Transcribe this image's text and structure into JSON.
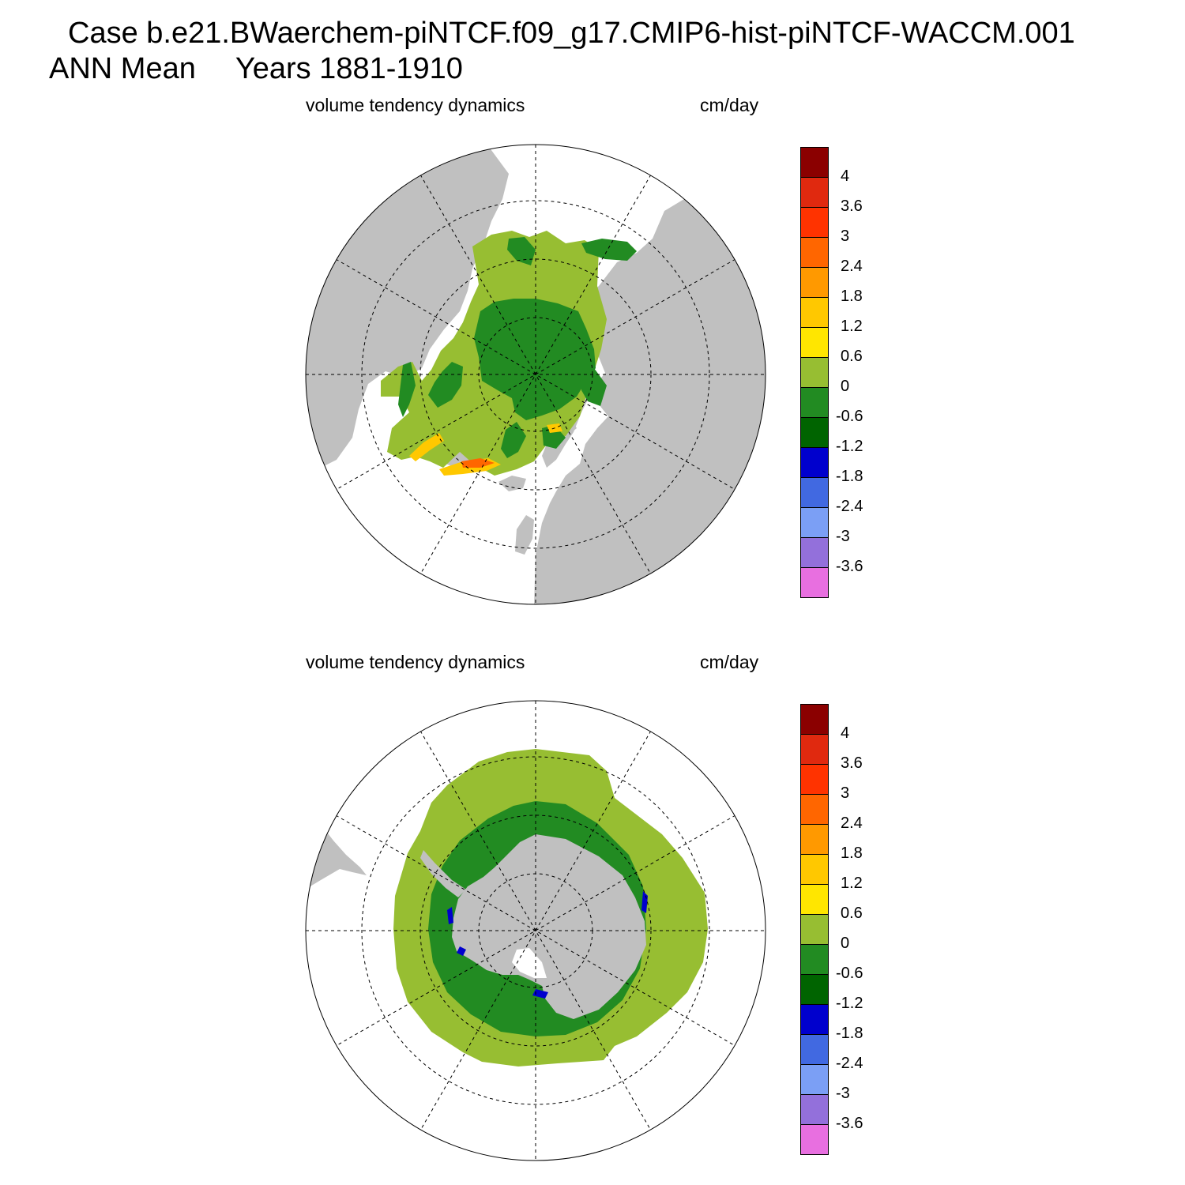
{
  "header": {
    "case_line": "Case b.e21.BWaerchem-piNTCF.f09_g17.CMIP6-hist-piNTCF-WACCM.001",
    "season": "ANN Mean",
    "years": "Years 1881-1910"
  },
  "colors": {
    "land": "#c0c0c0",
    "no_ice": "#ffffff",
    "grid": "#000000"
  },
  "chart_data": [
    {
      "type": "heatmap",
      "projection": "polar-stereographic",
      "hemisphere": "north",
      "title": "volume tendency dynamics",
      "units": "cm/day",
      "grid": true,
      "legend": "right",
      "colorbar": {
        "levels": [
          "4",
          "3.6",
          "3",
          "2.4",
          "1.8",
          "1.2",
          "0.6",
          "0",
          "-0.6",
          "-1.2",
          "-1.8",
          "-2.4",
          "-3",
          "-3.6"
        ],
        "colors": [
          "#8b0000",
          "#e0290f",
          "#ff3300",
          "#ff6600",
          "#ff9900",
          "#ffc800",
          "#ffe600",
          "#97be32",
          "#228b22",
          "#006400",
          "#0000cd",
          "#4169e1",
          "#7b9ff5",
          "#9370db",
          "#e86fe0"
        ]
      }
    },
    {
      "type": "heatmap",
      "projection": "polar-stereographic",
      "hemisphere": "south",
      "title": "volume tendency dynamics",
      "units": "cm/day",
      "grid": true,
      "legend": "right",
      "colorbar": {
        "levels": [
          "4",
          "3.6",
          "3",
          "2.4",
          "1.8",
          "1.2",
          "0.6",
          "0",
          "-0.6",
          "-1.2",
          "-1.8",
          "-2.4",
          "-3",
          "-3.6"
        ],
        "colors": [
          "#8b0000",
          "#e0290f",
          "#ff3300",
          "#ff6600",
          "#ff9900",
          "#ffc800",
          "#ffe600",
          "#97be32",
          "#228b22",
          "#006400",
          "#0000cd",
          "#4169e1",
          "#7b9ff5",
          "#9370db",
          "#e86fe0"
        ]
      }
    }
  ]
}
